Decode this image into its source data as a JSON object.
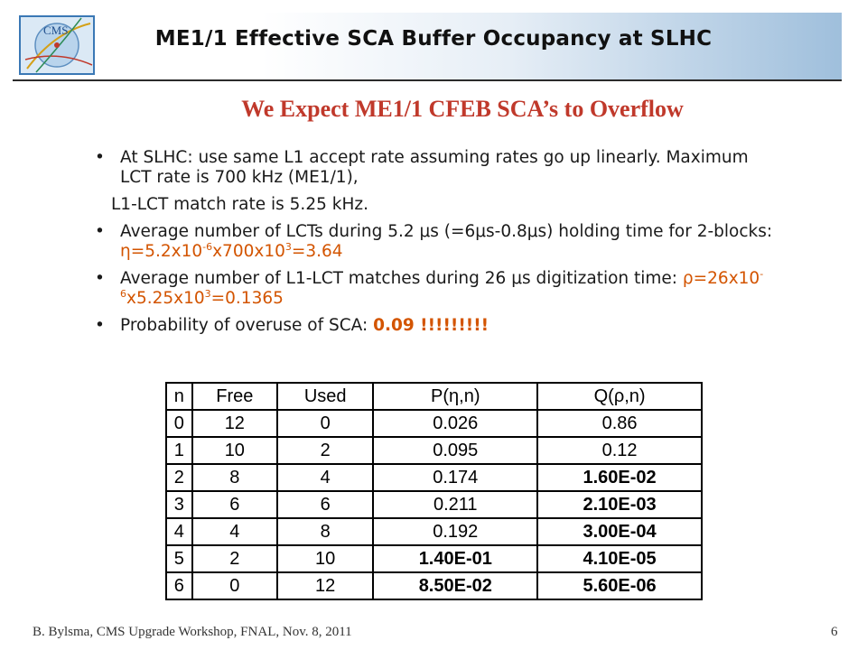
{
  "header": {
    "title": "ME1/1 Effective SCA Buffer Occupancy at SLHC",
    "logo_text": "CMS"
  },
  "subtitle": "We Expect ME1/1 CFEB SCA’s to Overflow",
  "bullets": {
    "b1_line": "At SLHC: use same L1 accept rate assuming rates go up linearly.  Maximum LCT rate is 700 kHz (ME1/1),",
    "b1_cont": "L1-LCT match rate is 5.25 kHz.",
    "b2_pre": "Average number of LCTs during 5.2 μs (=6μs-0.8μs) holding time for 2-blocks:  ",
    "b2_formula": {
      "a": "η=5.2x10",
      "e1": "-6",
      "b": "x700x10",
      "e2": "3",
      "c": "=3.64"
    },
    "b3_pre": "Average number of L1-LCT matches during 26 μs digitization time:  ",
    "b3_formula": {
      "a": "ρ=26x10",
      "e1": "-6",
      "b": "x5.25x10",
      "e2": "3",
      "c": "=0.1365"
    },
    "b4_pre": "Probability of overuse of SCA:  ",
    "b4_value": "0.09 !!!!!!!!!"
  },
  "table": {
    "headers": [
      "n",
      "Free",
      "Used",
      "P(η,n)",
      "Q(ρ,n)"
    ],
    "rows": [
      [
        "0",
        "12",
        "0",
        "0.026",
        "0.86"
      ],
      [
        "1",
        "10",
        "2",
        "0.095",
        "0.12"
      ],
      [
        "2",
        "8",
        "4",
        "0.174",
        "1.60E-02"
      ],
      [
        "3",
        "6",
        "6",
        "0.211",
        "2.10E-03"
      ],
      [
        "4",
        "4",
        "8",
        "0.192",
        "3.00E-04"
      ],
      [
        "5",
        "2",
        "10",
        "1.40E-01",
        "4.10E-05"
      ],
      [
        "6",
        "0",
        "12",
        "8.50E-02",
        "5.60E-06"
      ]
    ]
  },
  "footer": {
    "left": "B. Bylsma, CMS Upgrade Workshop, FNAL, Nov. 8, 2011",
    "page_number": "6"
  },
  "colors": {
    "subtitle": "#c0392b",
    "highlight": "#d35400",
    "header_gradient_end": "#9fbfdc"
  }
}
